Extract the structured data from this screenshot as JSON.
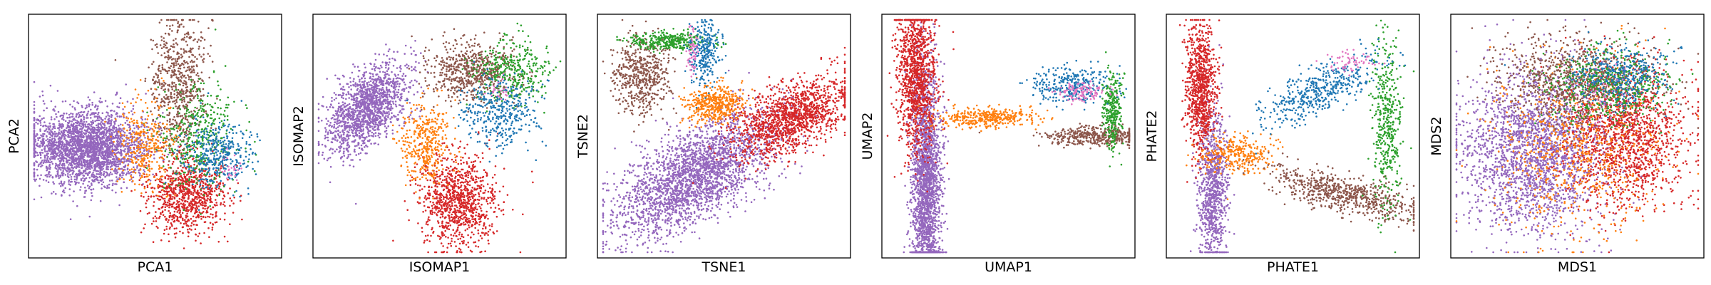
{
  "figure": {
    "palette": {
      "blue": "#1f77b4",
      "orange": "#ff7f0e",
      "green": "#2ca02c",
      "red": "#d62728",
      "purple": "#9467bd",
      "brown": "#8c564b",
      "pink": "#e377c2"
    }
  },
  "chart_data": [
    {
      "type": "scatter",
      "xlabel": "PCA1",
      "ylabel": "PCA2",
      "grid": false,
      "legend": "none",
      "xlim": [
        0,
        1
      ],
      "ylim": [
        0,
        1
      ],
      "clusters": [
        {
          "color": "purple",
          "n": 2600,
          "cx": 0.22,
          "cy": 0.45,
          "rx": 0.12,
          "ry": 0.08
        },
        {
          "color": "red",
          "n": 900,
          "cx": 0.63,
          "cy": 0.25,
          "rx": 0.08,
          "ry": 0.08
        },
        {
          "color": "brown",
          "n": 650,
          "cx": 0.6,
          "cy": 0.72,
          "rx": 0.055,
          "ry": 0.14
        },
        {
          "color": "green",
          "n": 420,
          "cx": 0.68,
          "cy": 0.5,
          "rx": 0.08,
          "ry": 0.12
        },
        {
          "color": "blue",
          "n": 380,
          "cx": 0.76,
          "cy": 0.42,
          "rx": 0.07,
          "ry": 0.07
        },
        {
          "color": "orange",
          "n": 320,
          "cx": 0.46,
          "cy": 0.47,
          "rx": 0.06,
          "ry": 0.1
        },
        {
          "color": "pink",
          "n": 25,
          "cx": 0.82,
          "cy": 0.36,
          "rx": 0.03,
          "ry": 0.03
        }
      ]
    },
    {
      "type": "scatter",
      "xlabel": "ISOMAP1",
      "ylabel": "ISOMAP2",
      "grid": false,
      "legend": "none",
      "xlim": [
        0,
        1
      ],
      "ylim": [
        0,
        1
      ],
      "clusters": [
        {
          "color": "purple",
          "n": 1500,
          "cx": 0.2,
          "cy": 0.62,
          "rx": 0.08,
          "ry": 0.08,
          "stretch": 0.6
        },
        {
          "color": "red",
          "n": 1000,
          "cx": 0.58,
          "cy": 0.22,
          "rx": 0.08,
          "ry": 0.1
        },
        {
          "color": "brown",
          "n": 650,
          "cx": 0.63,
          "cy": 0.78,
          "rx": 0.09,
          "ry": 0.06
        },
        {
          "color": "green",
          "n": 360,
          "cx": 0.8,
          "cy": 0.78,
          "rx": 0.08,
          "ry": 0.07
        },
        {
          "color": "blue",
          "n": 380,
          "cx": 0.75,
          "cy": 0.6,
          "rx": 0.08,
          "ry": 0.07
        },
        {
          "color": "orange",
          "n": 380,
          "cx": 0.44,
          "cy": 0.47,
          "rx": 0.05,
          "ry": 0.09
        },
        {
          "color": "pink",
          "n": 25,
          "cx": 0.74,
          "cy": 0.7,
          "rx": 0.03,
          "ry": 0.03
        }
      ]
    },
    {
      "type": "scatter",
      "xlabel": "TSNE1",
      "ylabel": "TSNE2",
      "grid": false,
      "legend": "none",
      "xlim": [
        0,
        1
      ],
      "ylim": [
        0,
        1
      ],
      "clusters": [
        {
          "color": "purple",
          "n": 2500,
          "cx": 0.38,
          "cy": 0.33,
          "rx": 0.16,
          "ry": 0.1,
          "stretch": 0.5
        },
        {
          "color": "red",
          "n": 1400,
          "cx": 0.78,
          "cy": 0.58,
          "rx": 0.12,
          "ry": 0.07,
          "stretch": 0.4
        },
        {
          "color": "orange",
          "n": 450,
          "cx": 0.46,
          "cy": 0.64,
          "rx": 0.06,
          "ry": 0.04
        },
        {
          "color": "brown",
          "n": 550,
          "cx": 0.16,
          "cy": 0.76,
          "rx": 0.06,
          "ry": 0.08
        },
        {
          "color": "green",
          "n": 350,
          "cx": 0.27,
          "cy": 0.91,
          "rx": 0.08,
          "ry": 0.02
        },
        {
          "color": "blue",
          "n": 280,
          "cx": 0.42,
          "cy": 0.86,
          "rx": 0.03,
          "ry": 0.07
        },
        {
          "color": "pink",
          "n": 60,
          "cx": 0.37,
          "cy": 0.86,
          "rx": 0.01,
          "ry": 0.05
        }
      ]
    },
    {
      "type": "scatter",
      "xlabel": "UMAP1",
      "ylabel": "UMAP2",
      "grid": false,
      "legend": "none",
      "xlim": [
        0,
        1
      ],
      "ylim": [
        0,
        1
      ],
      "clusters": [
        {
          "color": "purple",
          "n": 2200,
          "cx": 0.16,
          "cy": 0.3,
          "rx": 0.03,
          "ry": 0.24
        },
        {
          "color": "red",
          "n": 1200,
          "cx": 0.12,
          "cy": 0.76,
          "rx": 0.04,
          "ry": 0.16,
          "stretch": -0.1
        },
        {
          "color": "orange",
          "n": 380,
          "cx": 0.4,
          "cy": 0.58,
          "rx": 0.1,
          "ry": 0.02
        },
        {
          "color": "brown",
          "n": 420,
          "cx": 0.86,
          "cy": 0.5,
          "rx": 0.1,
          "ry": 0.02
        },
        {
          "color": "green",
          "n": 300,
          "cx": 0.93,
          "cy": 0.61,
          "rx": 0.02,
          "ry": 0.08
        },
        {
          "color": "blue",
          "n": 320,
          "cx": 0.76,
          "cy": 0.72,
          "rx": 0.08,
          "ry": 0.04
        },
        {
          "color": "pink",
          "n": 120,
          "cx": 0.8,
          "cy": 0.69,
          "rx": 0.05,
          "ry": 0.02
        }
      ]
    },
    {
      "type": "scatter",
      "xlabel": "PHATE1",
      "ylabel": "PHATE2",
      "grid": false,
      "legend": "none",
      "xlim": [
        0,
        1
      ],
      "ylim": [
        0,
        1
      ],
      "clusters": [
        {
          "color": "purple",
          "n": 900,
          "cx": 0.17,
          "cy": 0.28,
          "rx": 0.03,
          "ry": 0.16
        },
        {
          "color": "red",
          "n": 900,
          "cx": 0.12,
          "cy": 0.7,
          "rx": 0.03,
          "ry": 0.14
        },
        {
          "color": "orange",
          "n": 300,
          "cx": 0.27,
          "cy": 0.42,
          "rx": 0.07,
          "ry": 0.04
        },
        {
          "color": "brown",
          "n": 700,
          "cx": 0.72,
          "cy": 0.25,
          "rx": 0.16,
          "ry": 0.04,
          "stretch": -0.25
        },
        {
          "color": "green",
          "n": 420,
          "cx": 0.89,
          "cy": 0.55,
          "rx": 0.03,
          "ry": 0.18
        },
        {
          "color": "blue",
          "n": 480,
          "cx": 0.62,
          "cy": 0.7,
          "rx": 0.12,
          "ry": 0.05,
          "stretch": 0.5
        },
        {
          "color": "pink",
          "n": 60,
          "cx": 0.74,
          "cy": 0.82,
          "rx": 0.05,
          "ry": 0.02
        }
      ]
    },
    {
      "type": "scatter",
      "xlabel": "MDS1",
      "ylabel": "MDS2",
      "grid": false,
      "legend": "none",
      "xlim": [
        0,
        1
      ],
      "ylim": [
        0,
        1
      ],
      "clusters": [
        {
          "color": "purple",
          "n": 2300,
          "cx": 0.32,
          "cy": 0.44,
          "rx": 0.15,
          "ry": 0.17
        },
        {
          "color": "red",
          "n": 1500,
          "cx": 0.7,
          "cy": 0.5,
          "rx": 0.12,
          "ry": 0.15
        },
        {
          "color": "orange",
          "n": 700,
          "cx": 0.5,
          "cy": 0.44,
          "rx": 0.18,
          "ry": 0.18
        },
        {
          "color": "brown",
          "n": 900,
          "cx": 0.5,
          "cy": 0.74,
          "rx": 0.16,
          "ry": 0.09
        },
        {
          "color": "green",
          "n": 500,
          "cx": 0.63,
          "cy": 0.72,
          "rx": 0.13,
          "ry": 0.08
        },
        {
          "color": "blue",
          "n": 400,
          "cx": 0.68,
          "cy": 0.76,
          "rx": 0.1,
          "ry": 0.06
        },
        {
          "color": "pink",
          "n": 50,
          "cx": 0.6,
          "cy": 0.66,
          "rx": 0.06,
          "ry": 0.06
        }
      ]
    }
  ]
}
